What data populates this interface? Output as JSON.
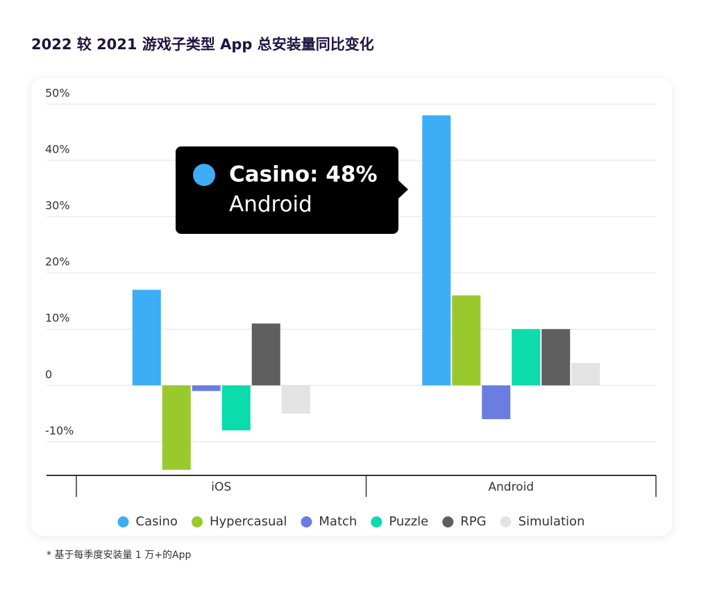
{
  "chart_data": {
    "type": "bar",
    "title": "2022 较 2021 游戏子类型 App 总安装量同比变化",
    "categories": [
      "iOS",
      "Android"
    ],
    "series": [
      {
        "name": "Casino",
        "color": "#3daef5",
        "values": [
          17,
          48
        ]
      },
      {
        "name": "Hypercasual",
        "color": "#9ac92e",
        "values": [
          -15,
          16
        ]
      },
      {
        "name": "Match",
        "color": "#6a7de0",
        "values": [
          -1,
          -6
        ]
      },
      {
        "name": "Puzzle",
        "color": "#0adcac",
        "values": [
          -8,
          10
        ]
      },
      {
        "name": "RPG",
        "color": "#5f5f5f",
        "values": [
          11,
          10
        ]
      },
      {
        "name": "Simulation",
        "color": "#e3e3e3",
        "values": [
          -5,
          4
        ]
      }
    ],
    "ylim": [
      -16,
      50
    ],
    "yticks": [
      {
        "value": -10,
        "label": "-10%"
      },
      0,
      {
        "value": 10,
        "label": "10%"
      },
      {
        "value": 20,
        "label": "20%"
      },
      {
        "value": 30,
        "label": "30%"
      },
      {
        "value": 40,
        "label": "40%"
      },
      {
        "value": 50,
        "label": "50%"
      }
    ],
    "grid": true,
    "legend": "bottom",
    "tooltip": {
      "title": "Casino: 48%",
      "subtitle": "Android"
    },
    "footnote": "* 基于每季度安装量 1 万+的App"
  }
}
